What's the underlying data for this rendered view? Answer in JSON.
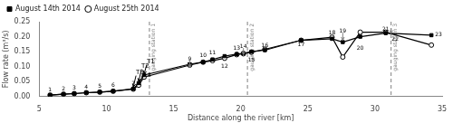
{
  "chart_data": {
    "type": "line",
    "xlabel": "Distance along the river [km]",
    "ylabel": "Flow rate (m³/s)",
    "x": [
      5.8,
      6.8,
      7.6,
      8.5,
      9.5,
      10.5,
      12.0,
      12.4,
      12.8,
      16.2,
      17.2,
      17.9,
      18.8,
      19.7,
      20.2,
      20.8,
      21.8,
      24.5,
      26.8,
      27.6,
      28.9,
      30.8,
      34.2
    ],
    "series": [
      {
        "name": "August 14th 2014",
        "color": "black",
        "marker": "square",
        "line_style": "solid",
        "values": [
          0.005,
          0.008,
          0.01,
          0.013,
          0.015,
          0.018,
          0.026,
          0.045,
          0.072,
          0.108,
          0.115,
          0.124,
          0.135,
          0.142,
          0.145,
          0.15,
          0.155,
          0.188,
          0.193,
          0.182,
          0.2,
          0.212,
          0.205
        ]
      },
      {
        "name": "August 25th 2014",
        "color": "black",
        "marker": "hollow_circle",
        "line_style": "solid",
        "values": [
          0.005,
          0.008,
          0.01,
          0.013,
          0.015,
          0.018,
          0.025,
          0.038,
          0.065,
          0.105,
          0.115,
          0.12,
          0.128,
          0.14,
          0.143,
          0.148,
          0.158,
          0.188,
          0.198,
          0.132,
          0.215,
          0.215,
          0.172
        ]
      }
    ],
    "annotations": [
      {
        "text": "1",
        "x": 5.8,
        "y": 0.005,
        "position": "above"
      },
      {
        "text": "2",
        "x": 6.8,
        "y": 0.008,
        "position": "above"
      },
      {
        "text": "3",
        "x": 7.6,
        "y": 0.01,
        "position": "above"
      },
      {
        "text": "4",
        "x": 8.5,
        "y": 0.013,
        "position": "above"
      },
      {
        "text": "5",
        "x": 9.5,
        "y": 0.015,
        "position": "above"
      },
      {
        "text": "6",
        "x": 10.5,
        "y": 0.018,
        "position": "above"
      },
      {
        "text": "7",
        "x": 12.0,
        "y": 0.026,
        "position": "above"
      },
      {
        "text": "8",
        "x": 12.8,
        "y": 0.072,
        "position": "right"
      },
      {
        "text": "9",
        "x": 16.2,
        "y": 0.108,
        "position": "above"
      },
      {
        "text": "10",
        "x": 17.2,
        "y": 0.118,
        "position": "above"
      },
      {
        "text": "11",
        "x": 17.9,
        "y": 0.127,
        "position": "above"
      },
      {
        "text": "12",
        "x": 18.8,
        "y": 0.121,
        "position": "below"
      },
      {
        "text": "13",
        "x": 19.7,
        "y": 0.143,
        "position": "above"
      },
      {
        "text": "14",
        "x": 20.2,
        "y": 0.148,
        "position": "above"
      },
      {
        "text": "15",
        "x": 20.8,
        "y": 0.143,
        "position": "below"
      },
      {
        "text": "16",
        "x": 21.8,
        "y": 0.153,
        "position": "above"
      },
      {
        "text": "17",
        "x": 24.5,
        "y": 0.155,
        "position": "above"
      },
      {
        "text": "18",
        "x": 26.8,
        "y": 0.193,
        "position": "above"
      },
      {
        "text": "19",
        "x": 27.6,
        "y": 0.2,
        "position": "above"
      },
      {
        "text": "20",
        "x": 28.9,
        "y": 0.183,
        "position": "below"
      },
      {
        "text": "21",
        "x": 30.8,
        "y": 0.205,
        "position": "above"
      },
      {
        "text": "22",
        "x": 31.5,
        "y": 0.212,
        "position": "below"
      },
      {
        "text": "23",
        "x": 34.2,
        "y": 0.207,
        "position": "right"
      }
    ],
    "vertical_lines": [
      {
        "x": 13.2,
        "label": "gauging station 1",
        "color": "gray",
        "line_style": "dashed"
      },
      {
        "x": 20.5,
        "label": "gauging station 2",
        "color": "gray",
        "line_style": "dashed"
      },
      {
        "x": 31.2,
        "label": "gauging station 3",
        "color": "gray",
        "line_style": "dashed"
      }
    ],
    "arrows": [
      {
        "label": "T1",
        "x1": 13.0,
        "y1": 0.107,
        "x2": 12.8,
        "y2": 0.075,
        "color": "black"
      },
      {
        "label": "T2",
        "x1": 12.6,
        "y1": 0.09,
        "x2": 12.4,
        "y2": 0.05,
        "color": "black"
      },
      {
        "label": "T3",
        "x1": 12.2,
        "y1": 0.07,
        "x2": 12.0,
        "y2": 0.032,
        "color": "black"
      },
      {
        "x1": 16.2,
        "y1": 0.12,
        "x2": 16.2,
        "y2": 0.098,
        "color": "gray"
      },
      {
        "x1": 20.2,
        "y1": 0.162,
        "x2": 20.2,
        "y2": 0.14,
        "color": "gray"
      },
      {
        "x1": 27.6,
        "y1": 0.213,
        "x2": 27.6,
        "y2": 0.188,
        "color": "gray"
      },
      {
        "x1": 31.2,
        "y1": 0.228,
        "x2": 31.2,
        "y2": 0.21,
        "color": "gray"
      }
    ],
    "xlim": [
      5,
      35
    ],
    "ylim": [
      0.0,
      0.25
    ],
    "xticks": [
      5,
      10,
      15,
      20,
      25,
      30,
      35
    ],
    "yticks": [
      {
        "value": 0.0,
        "label": "0.00"
      },
      0.05,
      {
        "value": 0.1,
        "label": "0.10"
      },
      0.15,
      {
        "value": 0.2,
        "label": "0.20"
      },
      0.25
    ],
    "grid": false,
    "legend": "upper left"
  }
}
